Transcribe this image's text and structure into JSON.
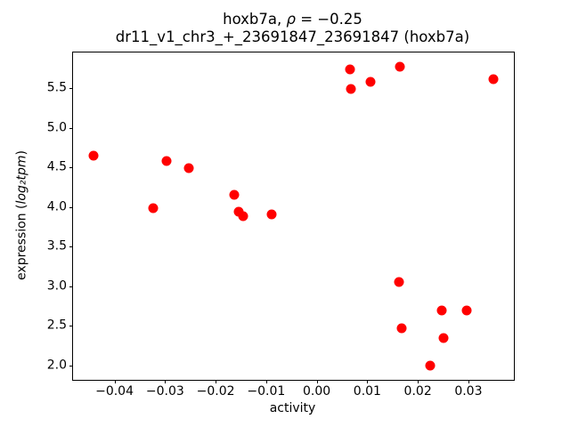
{
  "chart_data": {
    "type": "scatter",
    "title": {
      "prefix": "hoxb7a, ",
      "rho": "ρ",
      "rest": " = −0.25"
    },
    "subtitle": "dr11_v1_chr3_+_23691847_23691847 (hoxb7a)",
    "xlabel": "activity",
    "ylabel": {
      "prefix": "expression (",
      "math": "log₂tpm",
      "suffix": ")"
    },
    "correlation_rho": -0.25,
    "xlim": [
      -0.0482,
      0.039
    ],
    "ylim": [
      1.82,
      5.95
    ],
    "grid": false,
    "legend": "none",
    "marker_color": "#ff0000",
    "axis_color": "#000000",
    "x_ticks": [
      {
        "value": -0.04,
        "label": "−0.04"
      },
      {
        "value": -0.03,
        "label": "−0.03"
      },
      {
        "value": -0.02,
        "label": "−0.02"
      },
      {
        "value": -0.01,
        "label": "−0.01"
      },
      {
        "value": 0.0,
        "label": "0.00"
      },
      {
        "value": 0.01,
        "label": "0.01"
      },
      {
        "value": 0.02,
        "label": "0.02"
      },
      {
        "value": 0.03,
        "label": "0.03"
      }
    ],
    "y_ticks": [
      {
        "value": 2.0,
        "label": "2.0"
      },
      {
        "value": 2.5,
        "label": "2.5"
      },
      {
        "value": 3.0,
        "label": "3.0"
      },
      {
        "value": 3.5,
        "label": "3.5"
      },
      {
        "value": 4.0,
        "label": "4.0"
      },
      {
        "value": 4.5,
        "label": "4.5"
      },
      {
        "value": 5.0,
        "label": "5.0"
      },
      {
        "value": 5.5,
        "label": "5.5"
      }
    ],
    "points": [
      {
        "x": -0.0442,
        "y": 4.65
      },
      {
        "x": -0.0323,
        "y": 3.99
      },
      {
        "x": -0.0297,
        "y": 4.58
      },
      {
        "x": -0.0253,
        "y": 4.49
      },
      {
        "x": -0.0163,
        "y": 4.15
      },
      {
        "x": -0.0155,
        "y": 3.94
      },
      {
        "x": -0.0146,
        "y": 3.88
      },
      {
        "x": -0.0089,
        "y": 3.91
      },
      {
        "x": 0.0066,
        "y": 5.74
      },
      {
        "x": 0.0067,
        "y": 5.49
      },
      {
        "x": 0.0107,
        "y": 5.58
      },
      {
        "x": 0.0162,
        "y": 3.05
      },
      {
        "x": 0.0165,
        "y": 5.77
      },
      {
        "x": 0.0168,
        "y": 2.47
      },
      {
        "x": 0.0225,
        "y": 2.0
      },
      {
        "x": 0.0247,
        "y": 2.7
      },
      {
        "x": 0.025,
        "y": 2.35
      },
      {
        "x": 0.0297,
        "y": 2.69
      },
      {
        "x": 0.035,
        "y": 5.61
      }
    ]
  }
}
